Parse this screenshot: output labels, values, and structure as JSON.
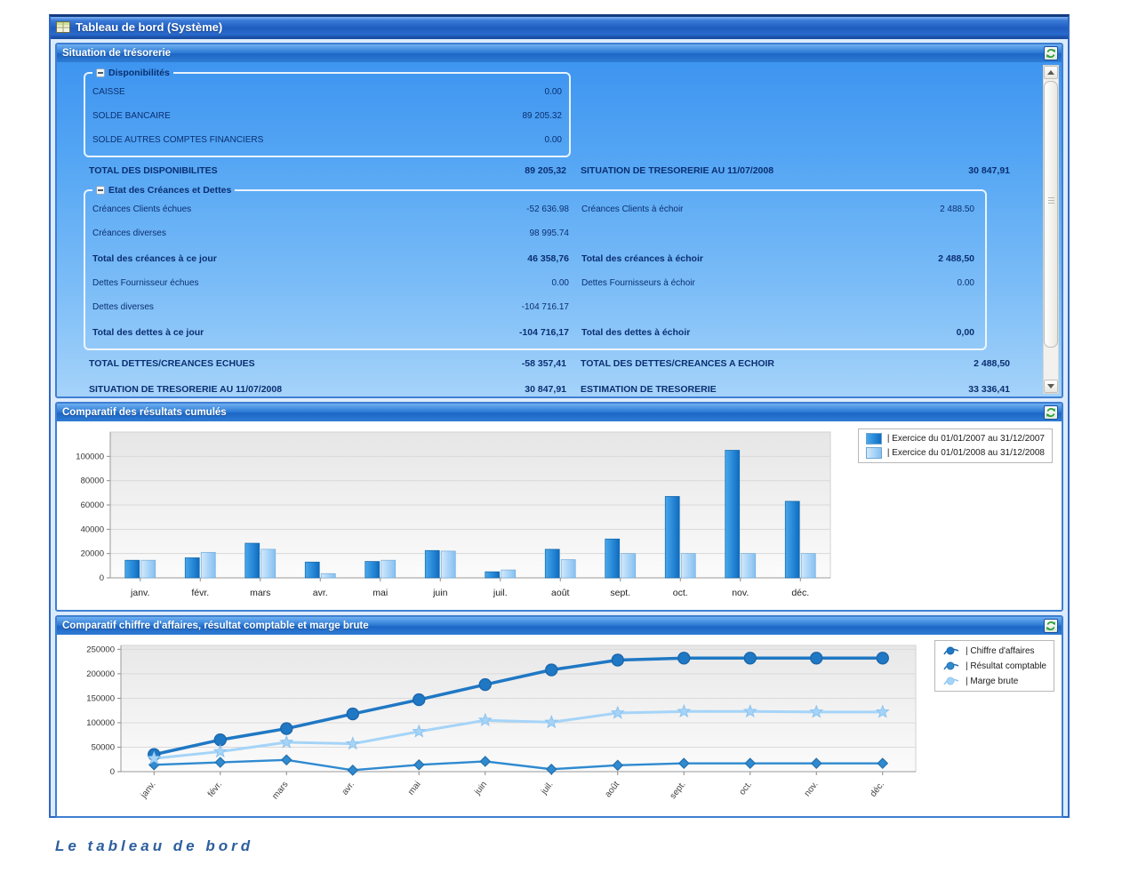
{
  "window": {
    "title": "Tableau de bord (Système)"
  },
  "caption": "Le tableau de bord",
  "panels": {
    "treasury": {
      "title": "Situation de trésorerie"
    },
    "bar": {
      "title": "Comparatif des résultats cumulés"
    },
    "line": {
      "title": "Comparatif chiffre d'affaires, résultat comptable et marge brute"
    }
  },
  "treasury": {
    "disponibilites": {
      "group_label": "Disponibilités",
      "rows": [
        {
          "label": "CAISSE",
          "value": "0.00"
        },
        {
          "label": "SOLDE BANCAIRE",
          "value": "89 205.32"
        },
        {
          "label": "SOLDE AUTRES COMPTES FINANCIERS",
          "value": "0.00"
        }
      ]
    },
    "total_disponibilites": {
      "left_label": "TOTAL DES DISPONIBILITES",
      "left_value": "89 205,32",
      "right_label": "SITUATION DE TRESORERIE AU 11/07/2008",
      "right_value": "30 847,91"
    },
    "creances_dettes": {
      "group_label": "Etat des Créances et Dettes",
      "rows": [
        {
          "left_label": "Créances Clients échues",
          "left_value": "-52 636.98",
          "right_label": "Créances Clients à échoir",
          "right_value": "2 488.50",
          "bold": false
        },
        {
          "left_label": "Créances diverses",
          "left_value": "98 995.74",
          "right_label": "",
          "right_value": "",
          "bold": false
        },
        {
          "left_label": "Total des créances à ce jour",
          "left_value": "46 358,76",
          "right_label": "Total des créances à échoir",
          "right_value": "2 488,50",
          "bold": true
        },
        {
          "left_label": "Dettes Fournisseur échues",
          "left_value": "0.00",
          "right_label": "Dettes Fournisseurs à échoir",
          "right_value": "0.00",
          "bold": false
        },
        {
          "left_label": "Dettes diverses",
          "left_value": "-104 716.17",
          "right_label": "",
          "right_value": "",
          "bold": false
        },
        {
          "left_label": "Total des dettes à ce jour",
          "left_value": "-104 716,17",
          "right_label": "Total des dettes à échoir",
          "right_value": "0,00",
          "bold": true
        }
      ]
    },
    "summary_rows": [
      {
        "left_label": "TOTAL DETTES/CREANCES ECHUES",
        "left_value": "-58 357,41",
        "right_label": "TOTAL DES DETTES/CREANCES A ECHOIR",
        "right_value": "2 488,50"
      },
      {
        "left_label": "SITUATION DE TRESORERIE AU 11/07/2008",
        "left_value": "30 847,91",
        "right_label": "ESTIMATION DE TRESORERIE",
        "right_value": "33 336,41"
      }
    ]
  },
  "chart_data": [
    {
      "type": "bar",
      "title": "Comparatif des résultats cumulés",
      "categories": [
        "janv.",
        "févr.",
        "mars",
        "avr.",
        "mai",
        "juin",
        "juil.",
        "août",
        "sept.",
        "oct.",
        "nov.",
        "déc."
      ],
      "series": [
        {
          "name": "| Exercice du 01/01/2007 au 31/12/2007",
          "color": "#1b7fd2",
          "values": [
            14500,
            16500,
            28500,
            13000,
            13500,
            22500,
            5000,
            23500,
            32000,
            67000,
            105000,
            63000
          ]
        },
        {
          "name": "| Exercice du 01/01/2008 au 31/12/2008",
          "color": "#9ccdf8",
          "values": [
            14500,
            21000,
            23500,
            3500,
            14500,
            22000,
            6500,
            15000,
            20000,
            20000,
            20000,
            20000
          ]
        }
      ],
      "xlabel": "",
      "ylabel": "",
      "ylim": [
        0,
        120000
      ],
      "yticks": [
        0,
        20000,
        40000,
        60000,
        80000,
        100000
      ],
      "legend_position": "top-right",
      "grid": true
    },
    {
      "type": "line",
      "title": "Comparatif chiffre d'affaires, résultat comptable et marge brute",
      "categories": [
        "janv.",
        "févr.",
        "mars",
        "avr.",
        "mai",
        "juin",
        "juil.",
        "août",
        "sept.",
        "oct.",
        "nov.",
        "déc."
      ],
      "series": [
        {
          "name": "| Chiffre d'affaires",
          "color": "#1f78c4",
          "stroke": "#1b66ab",
          "marker": "circle",
          "values": [
            35000,
            65000,
            88000,
            118000,
            147000,
            178000,
            208000,
            228000,
            232000,
            232000,
            232000,
            232000
          ]
        },
        {
          "name": "| Résultat comptable",
          "color": "#2f8ad0",
          "stroke": "#2470ad",
          "marker": "diamond",
          "values": [
            14000,
            19000,
            24000,
            3000,
            14000,
            21000,
            5000,
            13000,
            17000,
            17000,
            17000,
            17000
          ]
        },
        {
          "name": "| Marge brute",
          "color": "#a5d4f8",
          "stroke": "#8ec4ef",
          "marker": "star",
          "values": [
            27000,
            41000,
            60000,
            57000,
            82000,
            105000,
            101000,
            120000,
            123000,
            123000,
            122000,
            122000
          ]
        }
      ],
      "xlabel": "",
      "ylabel": "",
      "ylim": [
        0,
        258000
      ],
      "yticks": [
        0,
        50000,
        100000,
        150000,
        200000,
        250000
      ],
      "legend_position": "top-right",
      "grid": true
    }
  ]
}
